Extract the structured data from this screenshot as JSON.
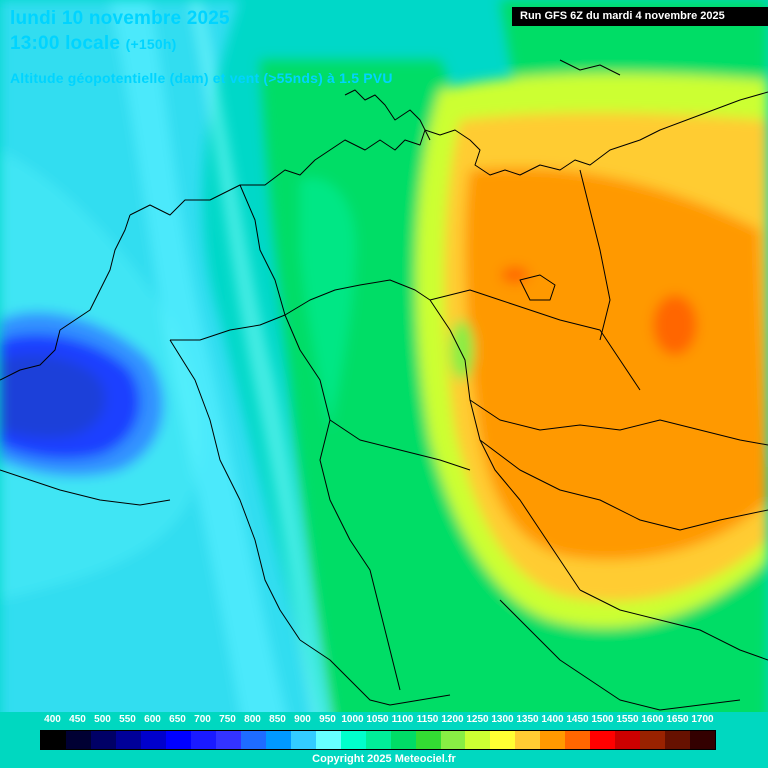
{
  "header": {
    "date_line": "lundi 10 novembre 2025",
    "time_line": "13:00 locale",
    "offset": "(+150h)",
    "param_line": "Altitude géopotentielle (dam) et vent (>55nds) à 1.5 PVU",
    "run_line": "Run GFS 6Z du mardi 4 novembre 2025"
  },
  "legend": {
    "labels": [
      "400",
      "450",
      "500",
      "550",
      "600",
      "650",
      "700",
      "750",
      "800",
      "850",
      "900",
      "950",
      "1000",
      "1050",
      "1100",
      "1150",
      "1200",
      "1250",
      "1300",
      "1350",
      "1400",
      "1450",
      "1500",
      "1550",
      "1600",
      "1650",
      "1700"
    ],
    "colors": [
      "#000000",
      "#000033",
      "#000066",
      "#000099",
      "#0000cc",
      "#0000ff",
      "#1a1aff",
      "#3333ff",
      "#1e6cff",
      "#0099ff",
      "#33ccff",
      "#66ffff",
      "#00ffcc",
      "#00ee99",
      "#00dd66",
      "#33dd33",
      "#88ee44",
      "#ccff33",
      "#ffff33",
      "#ffcc33",
      "#ff9900",
      "#ff6600",
      "#ff0000",
      "#cc0000",
      "#992200",
      "#661100",
      "#330000"
    ]
  },
  "footer": {
    "copyright": "Copyright 2025 Meteociel.fr"
  }
}
